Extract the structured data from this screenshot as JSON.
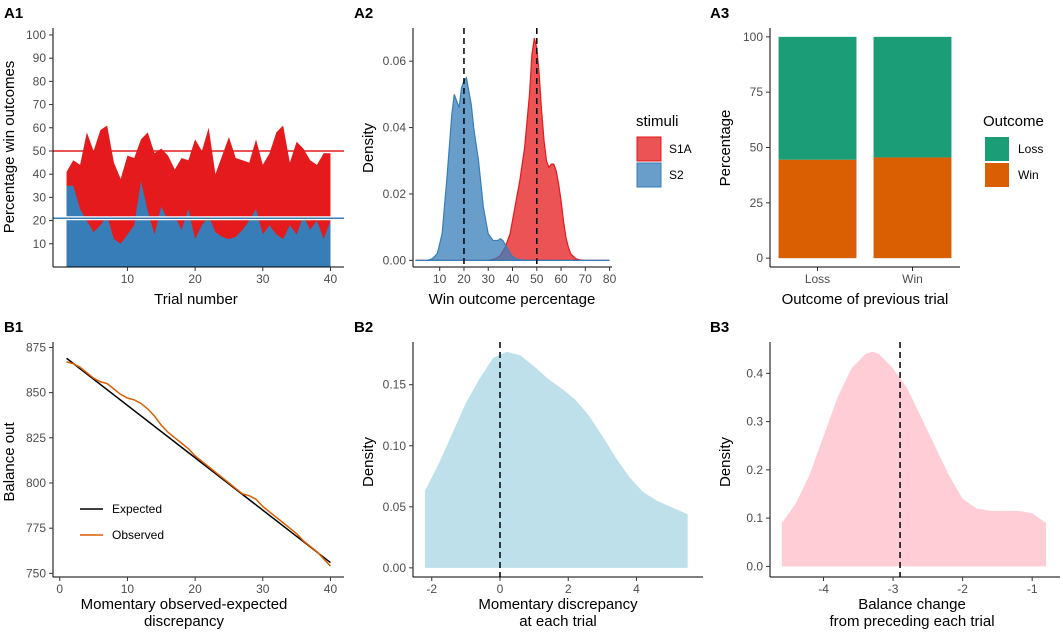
{
  "chart_data": [
    {
      "id": "A1",
      "panel_label": "A1",
      "type": "area",
      "xlabel": "Trial number",
      "ylabel": "Percentage win outcomes",
      "xlim": [
        -1,
        42
      ],
      "ylim": [
        0,
        103
      ],
      "xticks": [
        10,
        20,
        30,
        40
      ],
      "yticks": [
        10,
        20,
        30,
        40,
        50,
        60,
        70,
        80,
        90,
        100
      ],
      "x": [
        1,
        2,
        3,
        4,
        5,
        6,
        7,
        8,
        9,
        10,
        11,
        12,
        13,
        14,
        15,
        16,
        17,
        18,
        19,
        20,
        21,
        22,
        23,
        24,
        25,
        26,
        27,
        28,
        29,
        30,
        31,
        32,
        33,
        34,
        35,
        36,
        37,
        38,
        39,
        40
      ],
      "series": [
        {
          "name": "S1A",
          "color": "#e41a1c",
          "values": [
            41,
            46,
            44,
            58,
            50,
            59,
            61,
            45,
            38,
            48,
            47,
            55,
            58,
            49,
            51,
            48,
            42,
            47,
            46,
            55,
            50,
            60,
            40,
            48,
            56,
            47,
            46,
            45,
            55,
            44,
            49,
            58,
            61,
            45,
            54,
            51,
            46,
            44,
            49,
            49
          ]
        },
        {
          "name": "S2",
          "color": "#377eb8",
          "values": [
            35,
            35,
            25,
            20,
            15,
            18,
            22,
            12,
            10,
            14,
            18,
            37,
            24,
            14,
            26,
            20,
            22,
            16,
            25,
            12,
            18,
            22,
            15,
            13,
            12,
            13,
            16,
            20,
            25,
            14,
            18,
            14,
            12,
            18,
            14,
            22,
            16,
            20,
            12,
            20
          ]
        }
      ],
      "hlines": [
        {
          "y": 50,
          "color": "#e41a1c"
        },
        {
          "y": 21,
          "color": "#377eb8"
        }
      ]
    },
    {
      "id": "A2",
      "panel_label": "A2",
      "type": "area",
      "xlabel": "Win outcome percentage",
      "ylabel": "Density",
      "xlim": [
        -1,
        81
      ],
      "ylim": [
        -0.002,
        0.07
      ],
      "xticks": [
        10,
        20,
        30,
        40,
        50,
        60,
        70,
        80
      ],
      "yticks": [
        0.0,
        0.02,
        0.04,
        0.06
      ],
      "ytick_labels": [
        "0.00",
        "0.02",
        "0.04",
        "0.06"
      ],
      "vlines": [
        20,
        50
      ],
      "legend": {
        "title": "stimuli",
        "position": "right",
        "entries": [
          {
            "label": "S1A",
            "fill": "#e41a1c",
            "stroke": "#e41a1c"
          },
          {
            "label": "S2",
            "fill": "#377eb8",
            "stroke": "#377eb8"
          }
        ]
      },
      "series": [
        {
          "name": "S1A",
          "color": "#e41a1c",
          "x": [
            0,
            30,
            33,
            35,
            37,
            39,
            41,
            43,
            45,
            47,
            48,
            49,
            50,
            51,
            52,
            53,
            54,
            55,
            56,
            57,
            58,
            59,
            60,
            61,
            62,
            63,
            64,
            66,
            68,
            70,
            80
          ],
          "y": [
            0,
            0,
            0.0005,
            0.0015,
            0.004,
            0.008,
            0.016,
            0.024,
            0.034,
            0.05,
            0.062,
            0.067,
            0.064,
            0.056,
            0.045,
            0.036,
            0.03,
            0.028,
            0.029,
            0.029,
            0.027,
            0.023,
            0.018,
            0.012,
            0.007,
            0.004,
            0.002,
            0.0005,
            0.0001,
            0,
            0
          ]
        },
        {
          "name": "S2",
          "color": "#377eb8",
          "x": [
            0,
            5,
            7,
            9,
            11,
            13,
            15,
            16,
            17,
            18,
            19,
            20,
            21,
            22,
            23,
            24,
            26,
            28,
            30,
            32,
            34,
            35,
            36,
            37,
            38,
            39,
            40,
            42,
            44,
            46,
            80
          ],
          "y": [
            0,
            0,
            0.0005,
            0.002,
            0.008,
            0.025,
            0.044,
            0.05,
            0.048,
            0.046,
            0.052,
            0.054,
            0.055,
            0.051,
            0.047,
            0.04,
            0.03,
            0.016,
            0.008,
            0.006,
            0.006,
            0.0065,
            0.006,
            0.0048,
            0.0035,
            0.0022,
            0.0012,
            0.0003,
            0.0001,
            0,
            0
          ]
        }
      ]
    },
    {
      "id": "A3",
      "panel_label": "A3",
      "type": "bar",
      "xlabel": "Outcome of previous trial",
      "ylabel": "Percentage",
      "categories": [
        "Loss",
        "Win"
      ],
      "ylim": [
        -4,
        104
      ],
      "yticks": [
        0,
        25,
        50,
        75,
        100
      ],
      "legend": {
        "title": "Outcome",
        "position": "right",
        "entries": [
          {
            "label": "Loss",
            "fill": "#1b9e77"
          },
          {
            "label": "Win",
            "fill": "#d95f02"
          }
        ]
      },
      "series": [
        {
          "name": "Win",
          "color": "#d95f02",
          "values": [
            44.5,
            45.5
          ]
        },
        {
          "name": "Loss",
          "color": "#1b9e77",
          "values": [
            55.5,
            54.5
          ]
        }
      ]
    },
    {
      "id": "B1",
      "panel_label": "B1",
      "type": "line",
      "xlabel": "Momentary observed-expected",
      "xlabel2": "discrepancy",
      "ylabel": "Balance out",
      "xlim": [
        -1,
        42
      ],
      "ylim": [
        748,
        878
      ],
      "xticks": [
        0,
        10,
        20,
        30,
        40
      ],
      "yticks": [
        750,
        775,
        800,
        825,
        850,
        875
      ],
      "legend": {
        "position": "bottom-left",
        "entries": [
          {
            "label": "Expected",
            "color": "#000000"
          },
          {
            "label": "Observed",
            "color": "#d95f02"
          }
        ]
      },
      "series": [
        {
          "name": "Expected",
          "color": "#000000",
          "x": [
            1,
            40
          ],
          "y": [
            869,
            756
          ]
        },
        {
          "name": "Observed",
          "color": "#d95f02",
          "x": [
            1,
            2,
            3,
            4,
            5,
            6,
            7,
            8,
            9,
            10,
            11,
            12,
            13,
            14,
            15,
            16,
            17,
            18,
            19,
            20,
            21,
            22,
            23,
            24,
            25,
            26,
            27,
            28,
            29,
            30,
            31,
            32,
            33,
            34,
            35,
            36,
            37,
            38,
            39,
            40
          ],
          "y": [
            867,
            866,
            864,
            861,
            858,
            856,
            855,
            852,
            849,
            847,
            846,
            844,
            841,
            837,
            832,
            828,
            825,
            822,
            819,
            815,
            812,
            809,
            806,
            803,
            800,
            797,
            794,
            793,
            791,
            787,
            784,
            781,
            778,
            775,
            772,
            768,
            765,
            762,
            758,
            754
          ]
        }
      ]
    },
    {
      "id": "B2",
      "panel_label": "B2",
      "type": "area",
      "xlabel": "Momentary discrepancy",
      "xlabel2": "at each trial",
      "ylabel": "Density",
      "xlim": [
        -2.55,
        5.95
      ],
      "ylim": [
        -0.0075,
        0.185
      ],
      "xticks": [
        -2,
        0,
        2,
        4
      ],
      "yticks": [
        0,
        0.05,
        0.1,
        0.15
      ],
      "ytick_labels": [
        "0.00",
        "0.05",
        "0.10",
        "0.15"
      ],
      "vlines": [
        0
      ],
      "series": [
        {
          "name": "density",
          "color": "#add8e6",
          "x": [
            -2.2,
            -1.8,
            -1.4,
            -1.0,
            -0.6,
            -0.2,
            0.2,
            0.6,
            1.0,
            1.4,
            1.8,
            2.2,
            2.6,
            3.0,
            3.4,
            3.8,
            4.2,
            4.6,
            5.0,
            5.5
          ],
          "y": [
            0.063,
            0.085,
            0.11,
            0.135,
            0.155,
            0.172,
            0.177,
            0.174,
            0.165,
            0.155,
            0.147,
            0.138,
            0.125,
            0.108,
            0.09,
            0.074,
            0.062,
            0.055,
            0.05,
            0.044
          ]
        }
      ]
    },
    {
      "id": "B3",
      "panel_label": "B3",
      "type": "area",
      "xlabel": "Balance change",
      "xlabel2": "from preceding each trial",
      "ylabel": "Density",
      "xlim": [
        -4.77,
        -0.6
      ],
      "ylim": [
        -0.022,
        0.465
      ],
      "xticks": [
        -4,
        -3,
        -2,
        -1
      ],
      "yticks": [
        0,
        0.1,
        0.2,
        0.3,
        0.4
      ],
      "ytick_labels": [
        "0.0",
        "0.1",
        "0.2",
        "0.3",
        "0.4"
      ],
      "vlines": [
        -2.9
      ],
      "series": [
        {
          "name": "density",
          "color": "#ffc0cb",
          "x": [
            -4.6,
            -4.4,
            -4.2,
            -4.0,
            -3.8,
            -3.6,
            -3.4,
            -3.3,
            -3.2,
            -3.0,
            -2.8,
            -2.6,
            -2.4,
            -2.2,
            -2.0,
            -1.8,
            -1.6,
            -1.4,
            -1.2,
            -1.0,
            -0.8
          ],
          "y": [
            0.09,
            0.13,
            0.19,
            0.27,
            0.35,
            0.41,
            0.44,
            0.445,
            0.44,
            0.41,
            0.37,
            0.31,
            0.25,
            0.19,
            0.14,
            0.12,
            0.115,
            0.115,
            0.115,
            0.11,
            0.09
          ]
        }
      ]
    }
  ]
}
